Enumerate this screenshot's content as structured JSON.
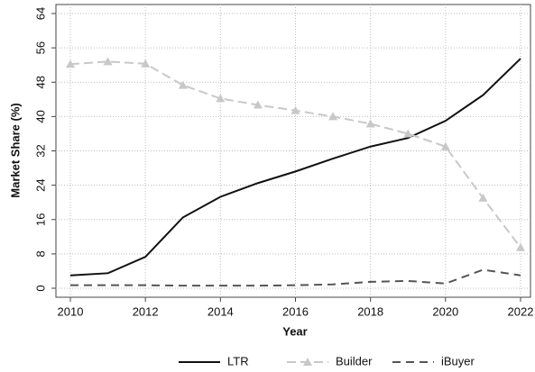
{
  "chart_data": {
    "type": "line",
    "x": [
      2010,
      2011,
      2012,
      2013,
      2014,
      2015,
      2016,
      2017,
      2018,
      2019,
      2020,
      2021,
      2022
    ],
    "xlabel": "Year",
    "ylabel": "Market Share (%)",
    "xlim": [
      2010,
      2022
    ],
    "xticks": [
      2010,
      2012,
      2014,
      2016,
      2018,
      2020,
      2022
    ],
    "ylim": [
      0,
      64
    ],
    "yticks": [
      0,
      8,
      16,
      24,
      32,
      40,
      48,
      56,
      64
    ],
    "grid": true,
    "legend": "bottom",
    "series": [
      {
        "name": "LTR",
        "color": "#111111",
        "values": [
          3,
          3.5,
          7.3,
          16.5,
          21.3,
          24.5,
          27.2,
          30.2,
          33,
          35,
          39,
          45,
          53.5
        ]
      },
      {
        "name": "Builder",
        "color": "#c8c8c8",
        "values": [
          52.2,
          52.8,
          52.3,
          47.3,
          44.2,
          42.7,
          41.4,
          40,
          38.3,
          36,
          33,
          21,
          9.5
        ]
      },
      {
        "name": "iBuyer",
        "color": "#555555",
        "values": [
          0.7,
          0.7,
          0.7,
          0.6,
          0.6,
          0.6,
          0.7,
          0.9,
          1.5,
          1.7,
          1.1,
          4.3,
          3
        ]
      }
    ]
  }
}
